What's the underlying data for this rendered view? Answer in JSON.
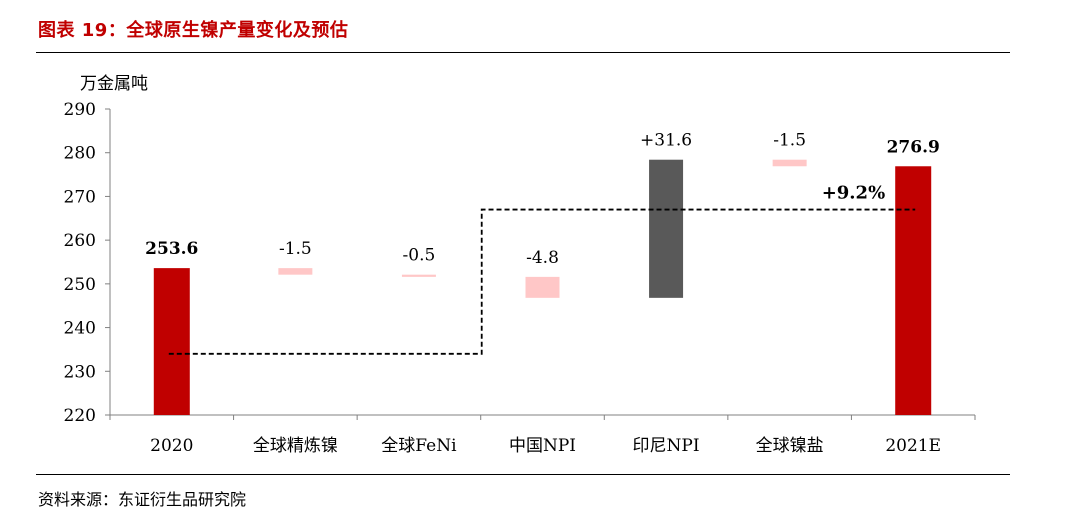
{
  "figure": {
    "title": "图表 19：全球原生镍产量变化及预估",
    "source": "资料来源：东证衍生品研究院"
  },
  "colors": {
    "title": "#c00000",
    "total_bar": "#c00000",
    "decrease_bar": "#ffc7c7",
    "increase_bar": "#595959",
    "axis": "#808080"
  },
  "chart_data": {
    "type": "bar",
    "subtype": "waterfall",
    "ylabel": "万金属吨",
    "ylim": [
      220,
      290
    ],
    "yticks": [
      "220",
      "230",
      "240",
      "250",
      "260",
      "270",
      "280",
      "290"
    ],
    "categories": [
      "2020",
      "全球精炼镍",
      "全球FeNi",
      "中国NPI",
      "印尼NPI",
      "全球镍盐",
      "2021E"
    ],
    "bars": [
      {
        "category": "2020",
        "kind": "total",
        "base": 220,
        "top": 253.6,
        "label": "253.6"
      },
      {
        "category": "全球精炼镍",
        "kind": "decrease",
        "base": 252.1,
        "top": 253.6,
        "label": "-1.5"
      },
      {
        "category": "全球FeNi",
        "kind": "decrease",
        "base": 251.6,
        "top": 252.1,
        "label": "-0.5"
      },
      {
        "category": "中国NPI",
        "kind": "decrease",
        "base": 246.8,
        "top": 251.6,
        "label": "-4.8"
      },
      {
        "category": "印尼NPI",
        "kind": "increase",
        "base": 246.8,
        "top": 278.4,
        "label": "+31.6"
      },
      {
        "category": "全球镍盐",
        "kind": "decrease",
        "base": 276.9,
        "top": 278.4,
        "label": "-1.5"
      },
      {
        "category": "2021E",
        "kind": "total",
        "base": 220,
        "top": 276.9,
        "label": "276.9"
      }
    ],
    "growth_annotation": {
      "label": "+9.2%",
      "from_category": "2020",
      "to_category": "2021E",
      "low_level": 234,
      "high_level": 267
    },
    "grid": false,
    "legend": "none"
  }
}
